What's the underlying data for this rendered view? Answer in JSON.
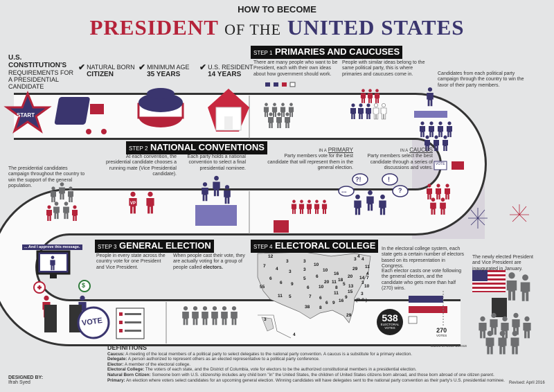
{
  "title": {
    "line1": "HOW TO BECOME",
    "president": "PRESIDENT",
    "of_the": "OF THE",
    "united_states": "UNITED STATES"
  },
  "colors": {
    "red": "#b5233a",
    "navy": "#3a356e",
    "grey": "#6d6e70",
    "background": "#e4e5e6"
  },
  "requirements": {
    "heading": "U.S. CONSTITUTION'S",
    "sub": "REQUIREMENTS FOR A PRESIDENTIAL CANDIDATE",
    "items": [
      {
        "top": "NATURAL BORN",
        "bold": "CITIZEN"
      },
      {
        "top": "MINIMUM AGE",
        "bold": "35 YEARS"
      },
      {
        "top": "U.S. RESIDENT",
        "bold": "14 YEARS"
      }
    ],
    "check_icon": "checkmark"
  },
  "start_label": "START",
  "step1": {
    "num": "STEP 1",
    "title": "PRIMARIES AND CAUCUSES",
    "text1": "There are many people who want to be President, each with their own ideas about how government should work.",
    "text2": "People with similar ideas belong to the same political party, this is where primaries and caucuses come in.",
    "text3": "Candidates from each political party campaign through the country to win the favor of their party members.",
    "primary_pre": "IN A",
    "primary": "PRIMARY",
    "primary_text": "Party members vote for the best candidate that will represent them in the general election.",
    "caucus_pre": "IN A",
    "caucus": "CAUCUS",
    "caucus_text": "Party members select the best candidate through a series of discussions and votes.",
    "bubbles": [
      "?!",
      "!",
      "...",
      "?"
    ],
    "vote_sign": "VOTE"
  },
  "step2": {
    "num": "STEP 2",
    "title": "NATIONAL CONVENTIONS",
    "text1": "At each convention, the presidential candidate chooses a running mate (Vice Presidential candidate).",
    "text2": "Each party holds a national convention to select a final presidential nominee.",
    "campaign_text": "The presidential candidates campaign throughout the country to win the support of the general population.",
    "vp_label": "VP"
  },
  "step3": {
    "num": "STEP 3",
    "title": "GENERAL ELECTION",
    "text1": "People in every state across the country vote for one President and Vice President.",
    "text2_pre": "When people cast their vote, they are actually voting for a group of people called ",
    "text2_bold": "electors.",
    "tv_caption": "... And I approve this message.",
    "vote_badge": "VOTE"
  },
  "step4": {
    "num": "STEP 4",
    "title": "ELECTORAL COLLEGE",
    "text1": "In the electoral college system, each state gets a certain number of electors based on its representation in Congress.",
    "text2": "Each elector casts one vote following the general election, and the candidate who gets more than half (270) wins.",
    "total": "538",
    "total_label": "ELECTORAL VOTES",
    "threshold": "270",
    "threshold_label": "VOTES",
    "census_note": "Based on 2010 Census",
    "dc_label": "(D.C.)",
    "map_numbers": [
      "12",
      "3",
      "3",
      "10",
      "4",
      "3",
      "4",
      "7",
      "4",
      "3",
      "3",
      "10",
      "11",
      "16",
      "29",
      "4",
      "6",
      "6",
      "9",
      "5",
      "6",
      "20",
      "14",
      "7",
      "55",
      "20",
      "11",
      "18",
      "5",
      "13",
      "3",
      "10",
      "6",
      "10",
      "8",
      "11",
      "5",
      "7",
      "6",
      "11",
      "15",
      "9",
      "3",
      "38",
      "6",
      "9",
      "16",
      "8",
      "29",
      "3",
      "4"
    ],
    "bars": [
      {
        "color": "#3a356e",
        "share": 0.5
      },
      {
        "color": "#b5233a",
        "share": 0.56
      },
      {
        "color": "#ffffff",
        "share": 0.12
      }
    ]
  },
  "inauguration_text": "The newly elected President and Vice President are inaugurated in January.",
  "definitions": {
    "heading": "DEFINITIONS",
    "items": [
      {
        "term": "Caucus:",
        "text": " A meeting of the local members of a political party to select delegates to the national party convention. A caucus is a substitute for a primary election."
      },
      {
        "term": "Delegate:",
        "text": " A person authorized to represent others as an elected representative to a political party conference."
      },
      {
        "term": "Elector:",
        "text": " A member of the electoral college."
      },
      {
        "term": "Electoral College:",
        "text": " The voters of each state, and the District of Columbia, vote for electors to be the authorized constitutional members in a presidential election."
      },
      {
        "term": "Natural Born Citizen:",
        "text": " Someone born with U.S. citizenship includes any child born \"in\" the United States, the children of United States citizens born abroad, and those born abroad of one citizen parent."
      },
      {
        "term": "Primary:",
        "text": " An election where voters select candidates for an upcoming general election. Winning candidates will have delegates sent to the national party convention as their party's U.S. presidential nominee."
      }
    ]
  },
  "designed_by": {
    "label": "DESIGNED BY:",
    "name": "Ifrah Syed"
  },
  "revised": "Revised: April 2016"
}
